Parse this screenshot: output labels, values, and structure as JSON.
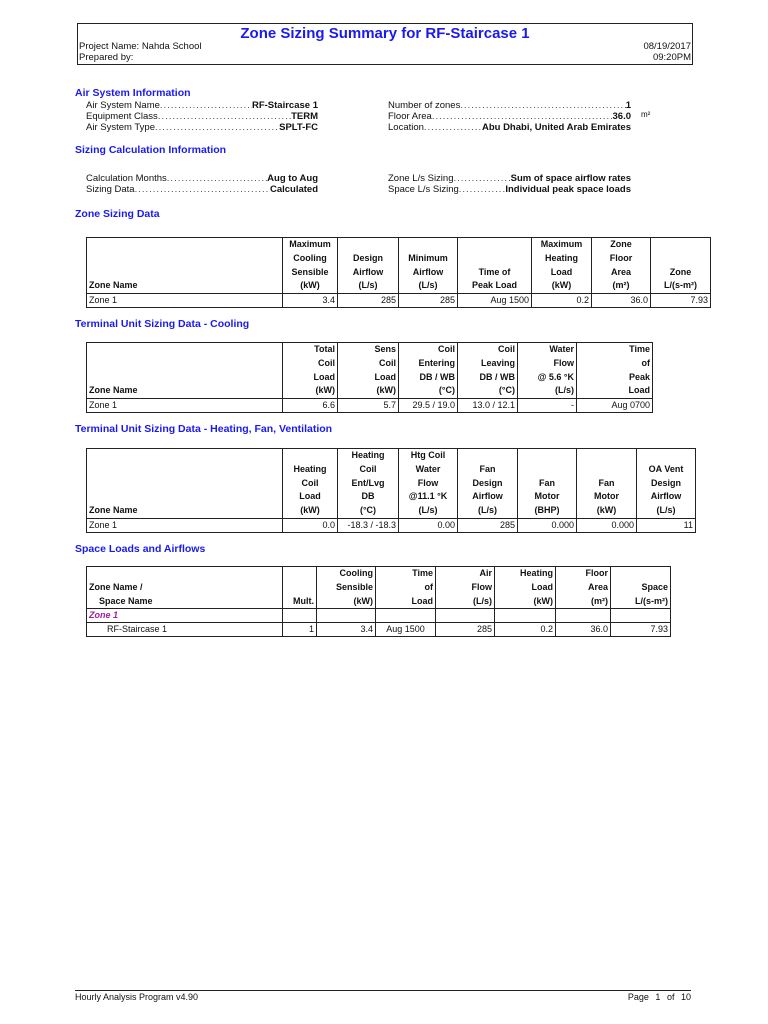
{
  "header": {
    "title": "Zone Sizing Summary for RF-Staircase 1",
    "project": "Project Name: Nahda School",
    "prepared": "Prepared by:",
    "date": "08/19/2017",
    "time": "09:20PM"
  },
  "air_system": {
    "heading": "Air System Information",
    "left": [
      {
        "k": "Air System Name",
        "v": "RF-Staircase 1"
      },
      {
        "k": "Equipment Class",
        "v": "TERM"
      },
      {
        "k": "Air System Type",
        "v": "SPLT-FC"
      }
    ],
    "right": [
      {
        "k": "Number of zones",
        "v": "1"
      },
      {
        "k": "Floor Area",
        "v": "36.0"
      },
      {
        "k": "Location",
        "v": "Abu Dhabi, United Arab Emirates"
      }
    ],
    "floor_area_unit": "m²"
  },
  "sizing_calc": {
    "heading": "Sizing Calculation Information",
    "left": [
      {
        "k": "Calculation Months",
        "v": "Aug to Aug"
      },
      {
        "k": "Sizing Data",
        "v": "Calculated"
      }
    ],
    "right": [
      {
        "k": "Zone L/s Sizing",
        "v": "Sum of space airflow rates"
      },
      {
        "k": "Space L/s Sizing",
        "v": "Individual peak space loads"
      }
    ]
  },
  "tables": [
    {
      "heading": "Zone Sizing Data",
      "align": "c",
      "headers": [
        "Zone Name",
        "Maximum\nCooling\nSensible\n(kW)",
        "Design\nAirflow\n(L/s)",
        "Minimum\nAirflow\n(L/s)",
        "Time of\nPeak Load",
        "Maximum\nHeating\nLoad\n(kW)",
        "Zone\nFloor\nArea\n(m²)",
        "Zone\nL/(s-m²)"
      ],
      "rows": [
        [
          "Zone 1",
          "3.4",
          "285",
          "285",
          "Aug 1500",
          "0.2",
          "36.0",
          "7.93"
        ]
      ]
    },
    {
      "heading": "Terminal Unit Sizing Data - Cooling",
      "align": "r",
      "headers": [
        "Zone Name",
        "Total\nCoil\nLoad\n(kW)",
        "Sens\nCoil\nLoad\n(kW)",
        "Coil\nEntering\nDB / WB\n(°C)",
        "Coil\nLeaving\nDB / WB\n(°C)",
        "Water\nFlow\n@ 5.6 °K\n(L/s)",
        "Time\nof\nPeak\nLoad"
      ],
      "rows": [
        [
          "Zone 1",
          "6.6",
          "5.7",
          "29.5 / 19.0",
          "13.0 / 12.1",
          "-",
          "Aug 0700"
        ]
      ]
    },
    {
      "heading": "Terminal Unit Sizing Data - Heating, Fan, Ventilation",
      "align": "c",
      "headers": [
        "Zone Name",
        "Heating\nCoil\nLoad\n(kW)",
        "Heating\nCoil\nEnt/Lvg\nDB\n(°C)",
        "Htg Coil\nWater\nFlow\n@11.1 °K\n(L/s)",
        "Fan\nDesign\nAirflow\n(L/s)",
        "Fan\nMotor\n(BHP)",
        "Fan\nMotor\n(kW)",
        "OA Vent\nDesign\nAirflow\n(L/s)"
      ],
      "rows": [
        [
          "Zone 1",
          "0.0",
          "-18.3 / -18.3",
          "0.00",
          "285",
          "0.000",
          "0.000",
          "11"
        ]
      ]
    },
    {
      "heading": "Space Loads and Airflows",
      "align": "r",
      "headers": [
        "Zone Name /\n    Space Name",
        "Mult.",
        "Cooling\nSensible\n(kW)",
        "Time\nof\nLoad",
        "Air\nFlow\n(L/s)",
        "Heating\nLoad\n(kW)",
        "Floor\nArea\n(m²)",
        "Space\nL/(s-m²)"
      ],
      "rows": [
        [
          "Zone 1",
          "",
          "",
          "",
          "",
          "",
          "",
          ""
        ],
        [
          "RF-Staircase 1",
          "1",
          "3.4",
          "Aug 1500",
          "285",
          "0.2",
          "36.0",
          "7.93"
        ]
      ]
    }
  ],
  "footer": {
    "program": "Hourly Analysis Program v4.90",
    "page_label": "Page",
    "page": "1",
    "of_label": "of",
    "total": "10"
  }
}
